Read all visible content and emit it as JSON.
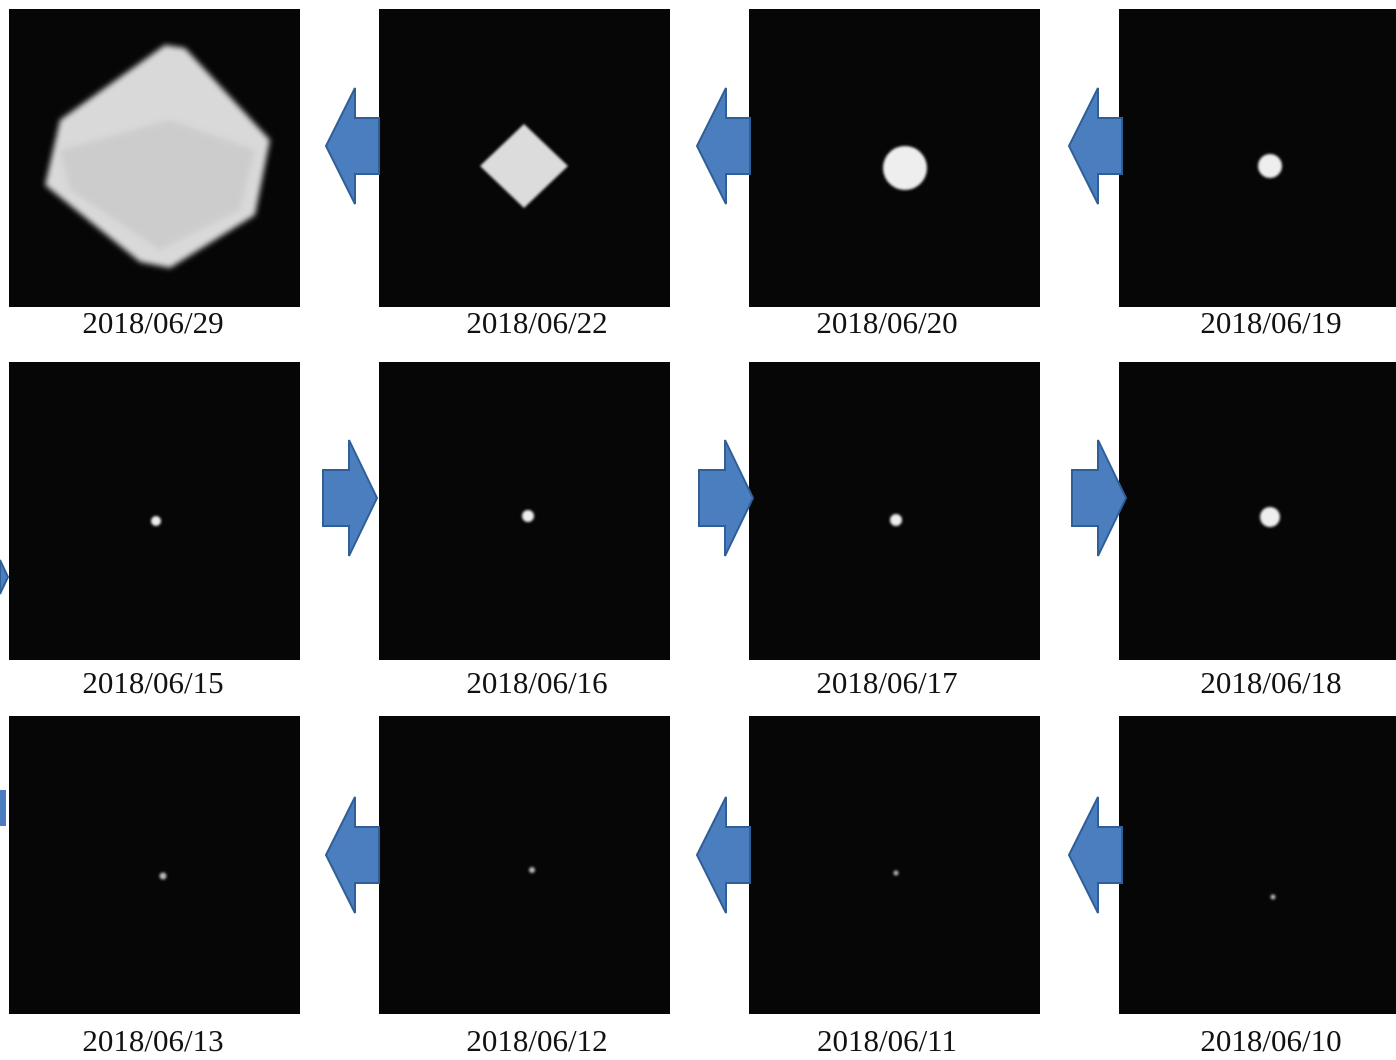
{
  "panels": [
    {
      "date": "2018/06/29"
    },
    {
      "date": "2018/06/22"
    },
    {
      "date": "2018/06/20"
    },
    {
      "date": "2018/06/19"
    },
    {
      "date": "2018/06/15"
    },
    {
      "date": "2018/06/16"
    },
    {
      "date": "2018/06/17"
    },
    {
      "date": "2018/06/18"
    },
    {
      "date": "2018/06/13"
    },
    {
      "date": "2018/06/12"
    },
    {
      "date": "2018/06/11"
    },
    {
      "date": "2018/06/10"
    }
  ]
}
